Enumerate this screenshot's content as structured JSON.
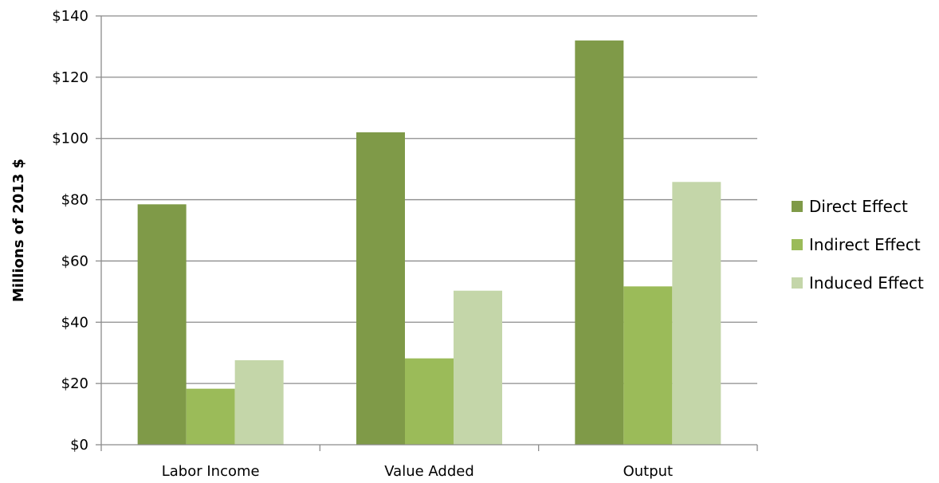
{
  "chart_data": {
    "type": "bar",
    "title": "",
    "xlabel": "",
    "ylabel": "Millions of 2013 $",
    "ylim": [
      0,
      140
    ],
    "yticks": [
      0,
      20,
      40,
      60,
      80,
      100,
      120,
      140
    ],
    "ytick_labels": [
      "$0",
      "$20",
      "$40",
      "$60",
      "$80",
      "$100",
      "$120",
      "$140"
    ],
    "categories": [
      "Labor Income",
      "Value Added",
      "Output"
    ],
    "series": [
      {
        "name": "Direct Effect",
        "color": "#7f9a48",
        "values": [
          78.5,
          102,
          132
        ]
      },
      {
        "name": "Indirect Effect",
        "color": "#9bbb59",
        "values": [
          18.3,
          28.2,
          51.7
        ]
      },
      {
        "name": "Induced Effect",
        "color": "#c4d6a9",
        "values": [
          27.6,
          50.3,
          85.8
        ]
      }
    ],
    "grid": true,
    "legend_position": "right"
  }
}
